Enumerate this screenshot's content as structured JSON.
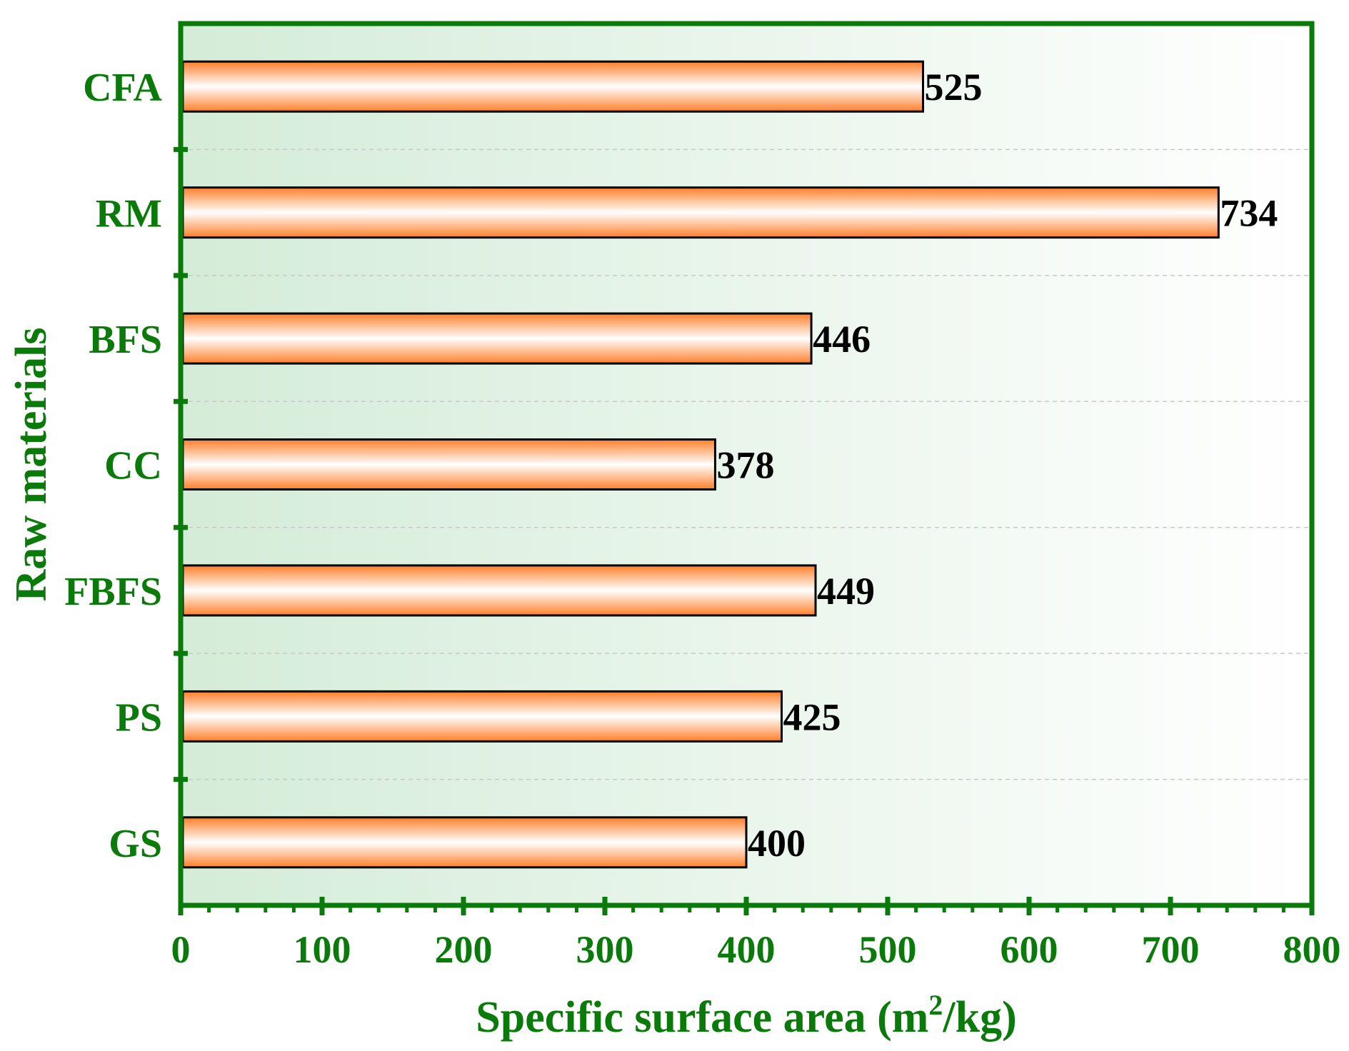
{
  "colors": {
    "axis": "#0a7a0a",
    "text": "#0a7a0a",
    "bar_edge": "#ff7f2a",
    "bar_center": "#ffffff",
    "bg_left": "#d4ecd8",
    "bg_right": "#ffffff",
    "grid": "#c8c8c8"
  },
  "chart_data": {
    "type": "bar",
    "orientation": "horizontal",
    "xlabel_main": "Specific surface area (m",
    "xlabel_sup": "2",
    "xlabel_tail": "/kg)",
    "ylabel": "Raw materials",
    "xlim": [
      0,
      800
    ],
    "xticks": [
      0,
      100,
      200,
      300,
      400,
      500,
      600,
      700,
      800
    ],
    "xtick_labels": [
      "0",
      "100",
      "200",
      "300",
      "400",
      "500",
      "600",
      "700",
      "800"
    ],
    "categories": [
      "CFA",
      "RM",
      "BFS",
      "CC",
      "FBFS",
      "PS",
      "GS"
    ],
    "values": [
      525,
      734,
      446,
      378,
      449,
      425,
      400
    ],
    "value_labels": [
      "525",
      "734",
      "446",
      "378",
      "449",
      "425",
      "400"
    ],
    "grid": "horizontal dashed",
    "legend": "none"
  }
}
